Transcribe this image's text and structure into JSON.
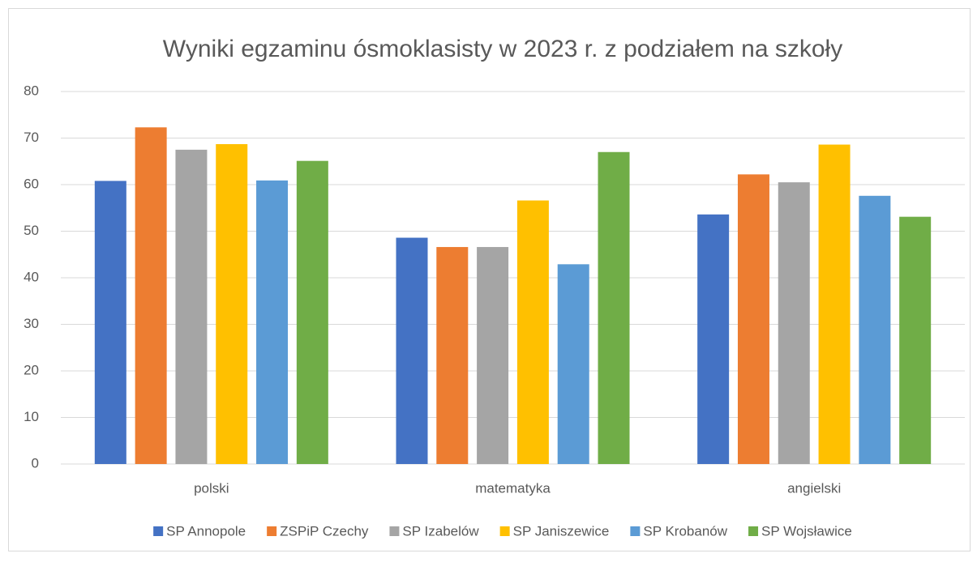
{
  "chart_data": {
    "type": "bar",
    "title": "Wyniki egzaminu ósmoklasisty w 2023 r. z podziałem na szkoły",
    "categories": [
      "polski",
      "matematyka",
      "angielski"
    ],
    "series": [
      {
        "name": "SP Annopole",
        "color": "#4472c4",
        "values": [
          60.8,
          48.6,
          53.6
        ]
      },
      {
        "name": "ZSPiP Czechy",
        "color": "#ed7d31",
        "values": [
          72.3,
          46.6,
          62.2
        ]
      },
      {
        "name": "SP Izabelów",
        "color": "#a5a5a5",
        "values": [
          67.5,
          46.6,
          60.5
        ]
      },
      {
        "name": "SP Janiszewice",
        "color": "#ffc000",
        "values": [
          68.7,
          56.6,
          68.6
        ]
      },
      {
        "name": "SP Krobanów",
        "color": "#5b9bd5",
        "values": [
          60.9,
          42.9,
          57.6
        ]
      },
      {
        "name": "SP Wojsławice",
        "color": "#70ad47",
        "values": [
          65.1,
          67.0,
          53.1
        ]
      }
    ],
    "ylim": [
      0,
      80
    ],
    "yticks": [
      0,
      10,
      20,
      30,
      40,
      50,
      60,
      70,
      80
    ],
    "grid": true,
    "legend": "bottom"
  }
}
